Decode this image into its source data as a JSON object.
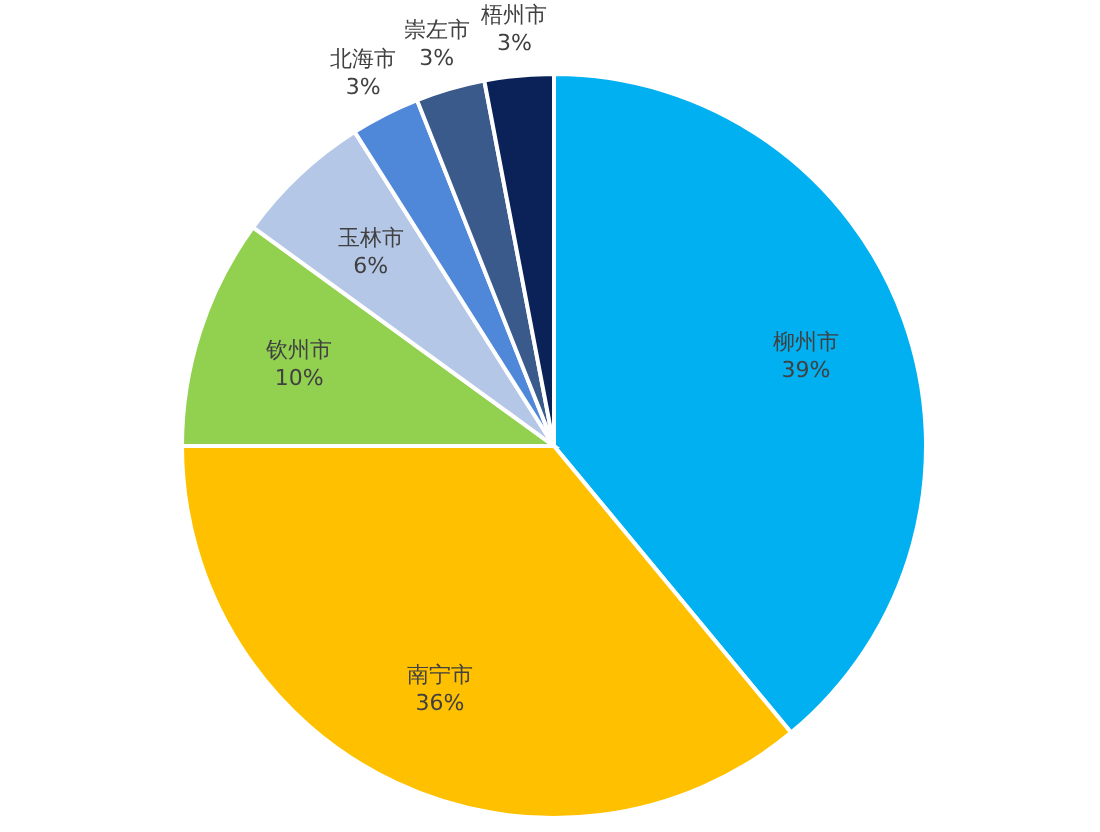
{
  "chart_data": {
    "type": "pie",
    "categories": [
      "柳州市",
      "南宁市",
      "钦州市",
      "玉林市",
      "北海市",
      "崇左市",
      "梧州市"
    ],
    "values": [
      39,
      36,
      10,
      6,
      3,
      3,
      3
    ],
    "colors": [
      "#00b0f0",
      "#ffc000",
      "#92d050",
      "#b4c7e7",
      "#4f87d9",
      "#3a5a8c",
      "#0a2258"
    ],
    "value_labels": [
      "39%",
      "36%",
      "10%",
      "6%",
      "3%",
      "3%",
      "3%"
    ]
  }
}
